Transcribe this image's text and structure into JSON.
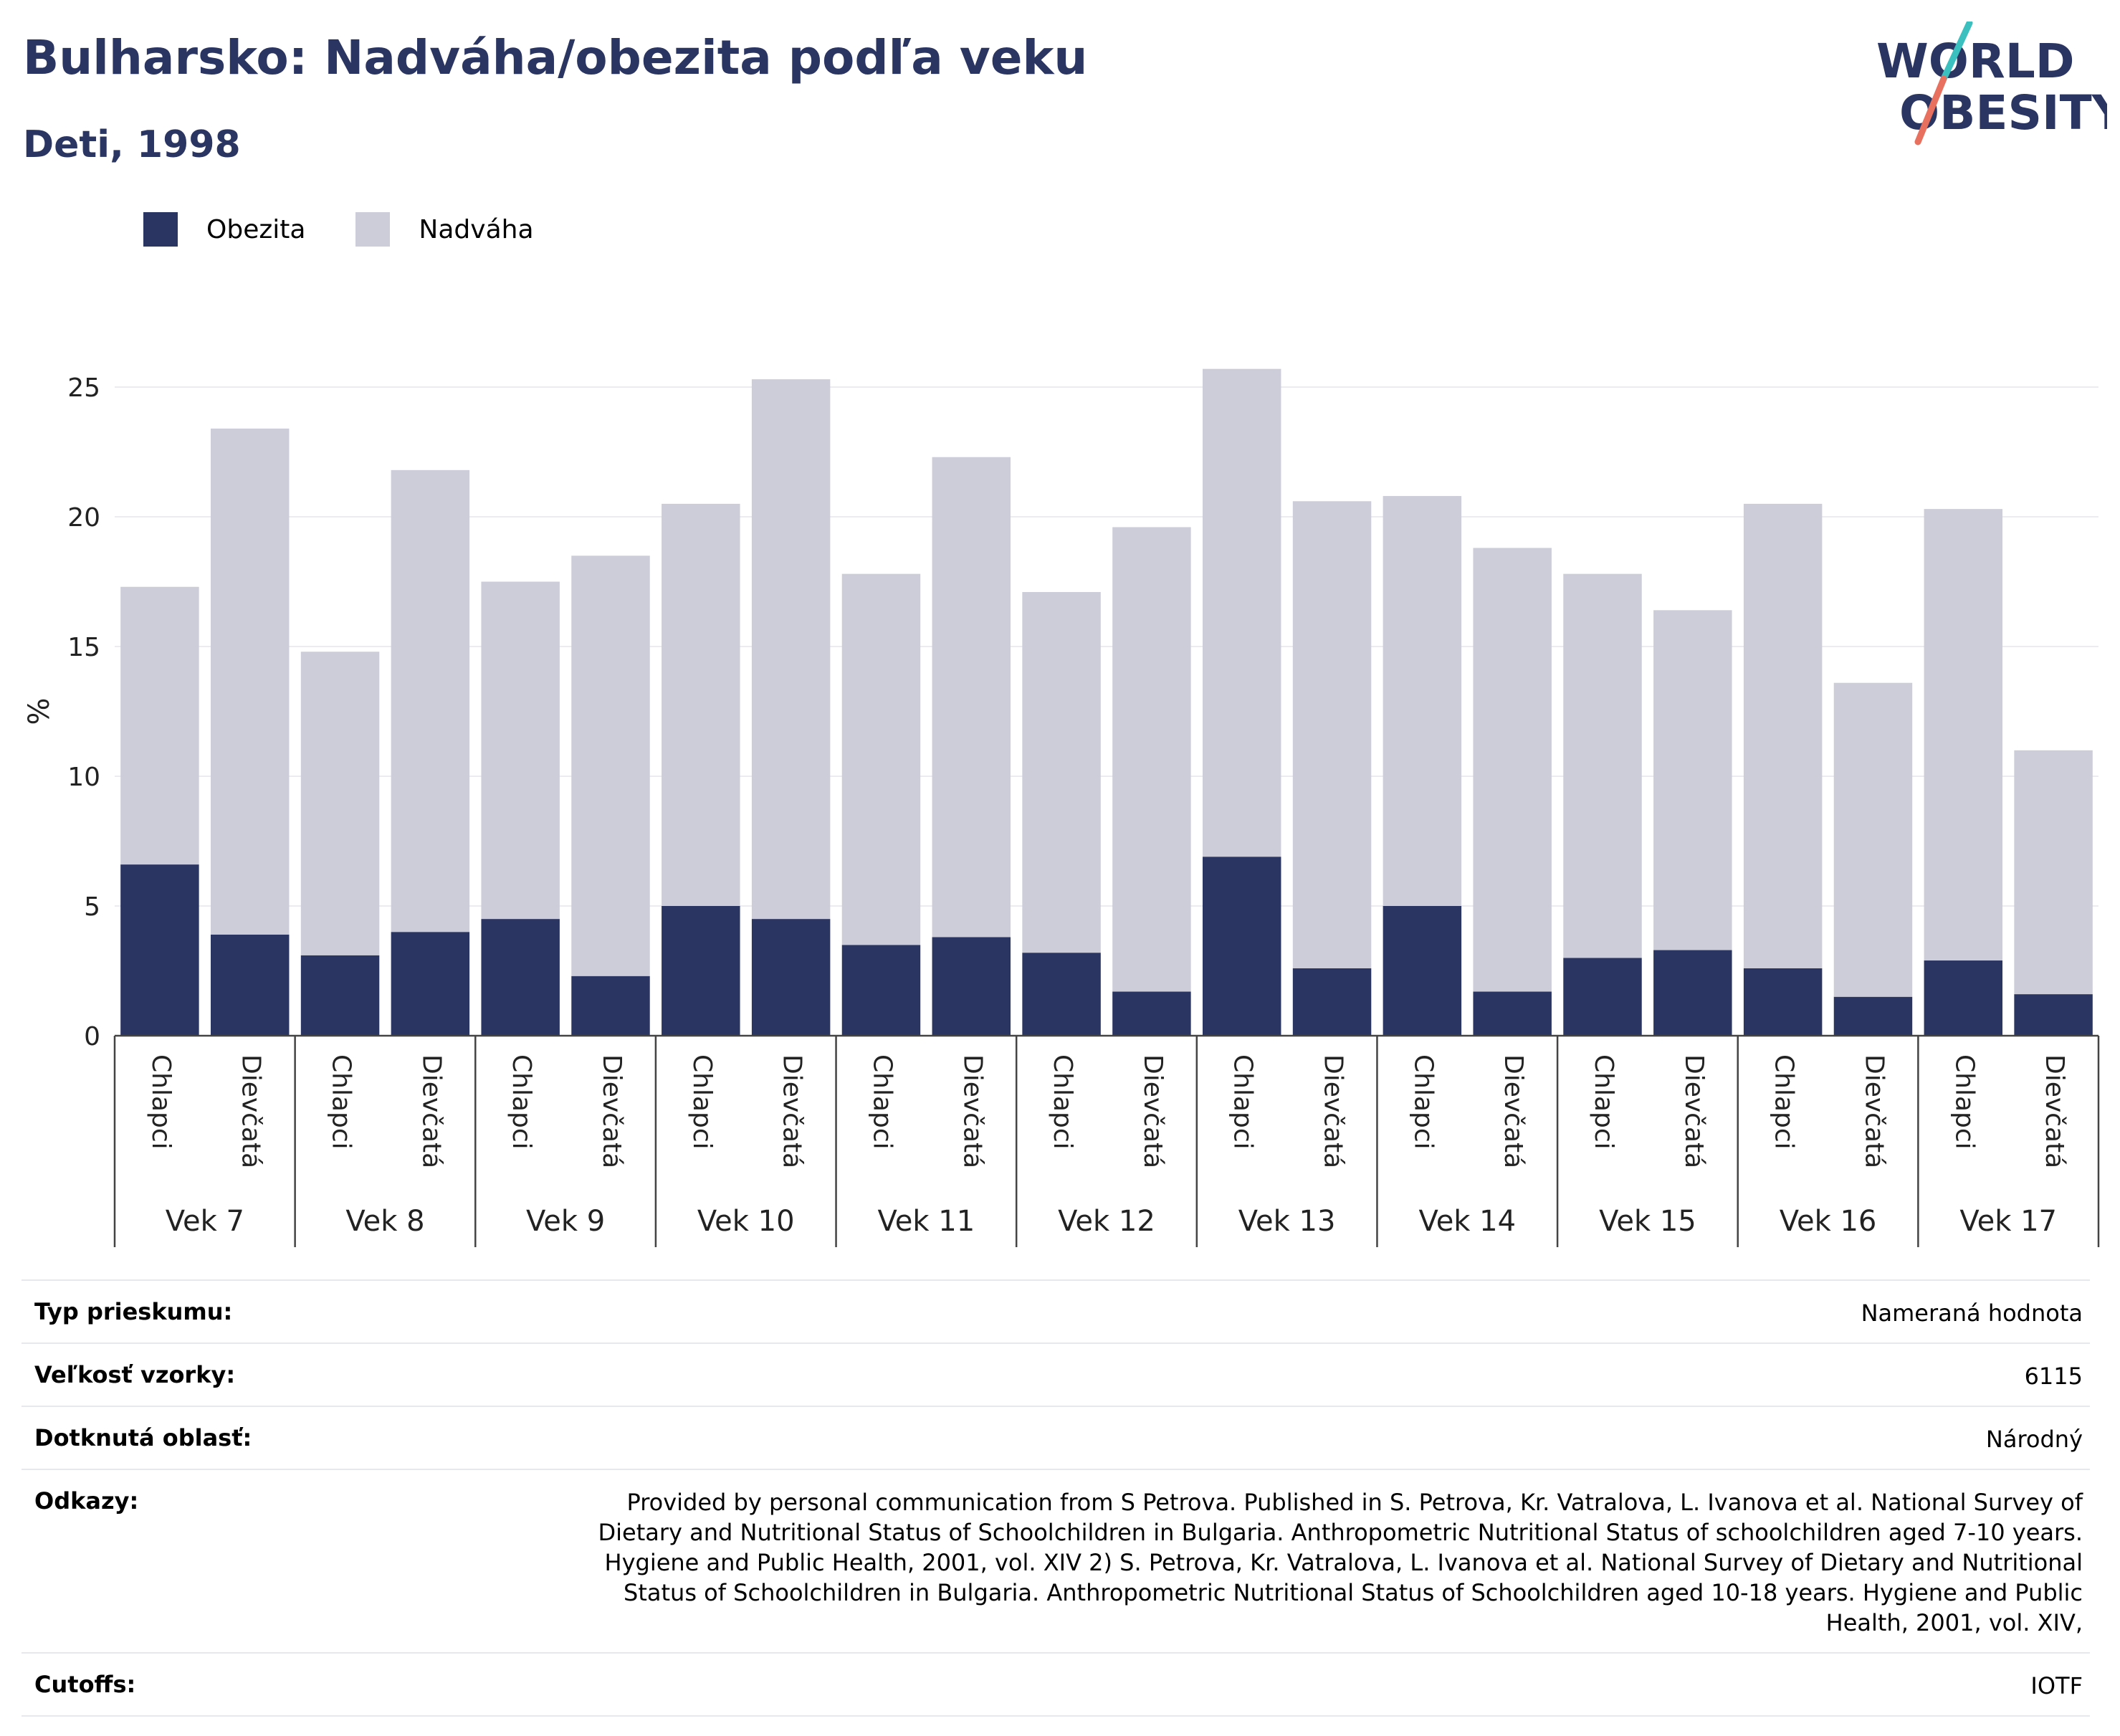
{
  "header": {
    "title": "Bulharsko: Nadváha/obezita podľa veku",
    "subtitle": "Deti, 1998"
  },
  "logo": {
    "line1": "WORLD",
    "line2": "OBESITY",
    "colors": {
      "text": "#2b3562",
      "teal": "#3cbfbf",
      "coral": "#e8705f"
    }
  },
  "legend": [
    {
      "label": "Obezita",
      "color": "#2b3562"
    },
    {
      "label": "Nadváha",
      "color": "#cccdd9"
    }
  ],
  "chart_data": {
    "type": "bar",
    "stacked": true,
    "ylabel": "%",
    "ylim": [
      0,
      27
    ],
    "yticks": [
      0,
      5,
      10,
      15,
      20,
      25
    ],
    "grid": true,
    "legend_position": "top-left",
    "groups": [
      "Vek 7",
      "Vek 8",
      "Vek 9",
      "Vek 10",
      "Vek 11",
      "Vek 12",
      "Vek 13",
      "Vek 14",
      "Vek 15",
      "Vek 16",
      "Vek 17"
    ],
    "subcategories": [
      "Chlapci",
      "Dievčatá"
    ],
    "series": [
      {
        "name": "Obezita",
        "color": "#2b3562",
        "values": [
          [
            6.6,
            3.9
          ],
          [
            3.1,
            4.0
          ],
          [
            4.5,
            2.3
          ],
          [
            5.0,
            4.5
          ],
          [
            3.5,
            3.8
          ],
          [
            3.2,
            1.7
          ],
          [
            6.9,
            2.6
          ],
          [
            5.0,
            1.7
          ],
          [
            3.0,
            3.3
          ],
          [
            2.6,
            1.5
          ],
          [
            2.9,
            1.6
          ]
        ]
      },
      {
        "name": "Nadváha",
        "color": "#cccdd9",
        "values": [
          [
            10.7,
            19.5
          ],
          [
            11.7,
            17.8
          ],
          [
            13.0,
            16.2
          ],
          [
            15.5,
            20.8
          ],
          [
            14.3,
            18.5
          ],
          [
            13.9,
            17.9
          ],
          [
            18.8,
            18.0
          ],
          [
            15.8,
            17.1
          ],
          [
            14.8,
            13.1
          ],
          [
            17.9,
            12.1
          ],
          [
            17.4,
            9.4
          ]
        ]
      }
    ]
  },
  "info": [
    {
      "label": "Typ prieskumu:",
      "value": "Nameraná hodnota"
    },
    {
      "label": "Veľkosť vzorky:",
      "value": "6115"
    },
    {
      "label": "Dotknutá oblasť:",
      "value": "Národný"
    },
    {
      "label": "Odkazy:",
      "value": "Provided by personal communication from S Petrova. Published in S. Petrova, Kr. Vatralova, L. Ivanova et al. National Survey of Dietary and Nutritional Status of Schoolchildren in Bulgaria. Anthropometric Nutritional Status of schoolchildren aged 7-10 years. Hygiene and Public Health, 2001, vol. XIV 2) S. Petrova, Kr. Vatralova, L. Ivanova et al. National Survey of Dietary and Nutritional Status of Schoolchildren in Bulgaria. Anthropometric Nutritional Status of Schoolchildren aged 10-18 years. Hygiene and Public Health, 2001, vol. XIV,"
    },
    {
      "label": "Cutoffs:",
      "value": "IOTF"
    }
  ]
}
